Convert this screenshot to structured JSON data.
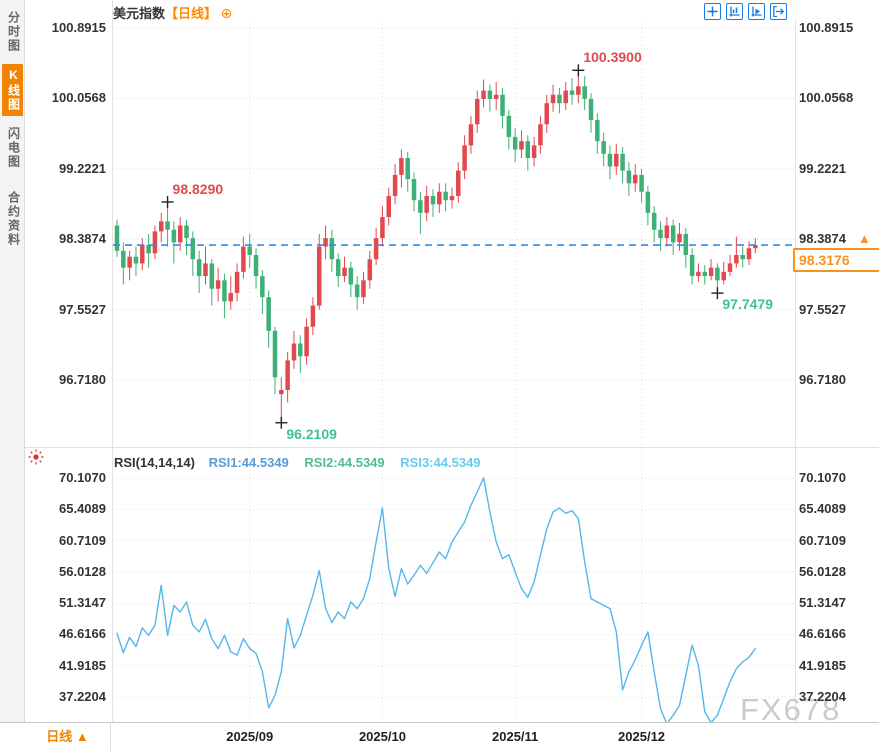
{
  "header": {
    "title": "美元指数",
    "period_tag": "【日线】",
    "add_icon": "⊕"
  },
  "sidebar": {
    "items": [
      {
        "label": "分时图",
        "active": false
      },
      {
        "label": "K线图",
        "active": true
      },
      {
        "label": "闪电图",
        "active": false
      },
      {
        "label": "合约资料",
        "active": false
      }
    ]
  },
  "price_axis": {
    "ticks": [
      "100.8915",
      "100.0568",
      "99.2221",
      "98.3874",
      "97.5527",
      "96.7180"
    ]
  },
  "rsi_axis": {
    "ticks": [
      "70.1070",
      "65.4089",
      "60.7109",
      "56.0128",
      "51.3147",
      "46.6166",
      "41.9185",
      "37.2204"
    ]
  },
  "current_price": {
    "value": "98.3176",
    "axis_row_label": "98.3874",
    "arrow": "▲"
  },
  "annotations": [
    {
      "text": "98.8290",
      "day": 8,
      "price": 98.829,
      "color": "#e3484f",
      "anchor": "above"
    },
    {
      "text": "100.3900",
      "day": 73,
      "price": 100.39,
      "color": "#e3484f",
      "anchor": "above"
    },
    {
      "text": "96.2109",
      "day": 26,
      "price": 96.2109,
      "color": "#3fbf9a",
      "anchor": "below"
    },
    {
      "text": "97.7479",
      "day": 95,
      "price": 97.7479,
      "color": "#3fbf9a",
      "anchor": "below"
    }
  ],
  "rsi_legend": {
    "name": "RSI(14,14,14)",
    "rsi1": "RSI1:44.5349",
    "rsi2": "RSI2:44.5349",
    "rsi3": "RSI3:44.5349"
  },
  "bottom": {
    "period": "日线 ▲",
    "dates": [
      "2025/09",
      "2025/10",
      "2025/11",
      "2025/12"
    ]
  },
  "watermark": "FX678",
  "colors": {
    "up": "#e3484f",
    "down": "#3cb076",
    "rsi_line": "#55b7ea",
    "accent_orange": "#f08300",
    "toolbar_blue": "#1a7ce0",
    "current_price_line": "#2a8df0",
    "grid": "#d9d9d9",
    "watermark": "#cbcbcb"
  },
  "chart_data": [
    {
      "type": "candlestick",
      "title": "美元指数【日线】",
      "ylabel": "price",
      "y_ticks": [
        100.8915,
        100.0568,
        99.2221,
        98.3874,
        97.5527,
        96.718
      ],
      "ylim": [
        96.31,
        100.99
      ],
      "x_labels": [
        "2025/09",
        "2025/10",
        "2025/11",
        "2025/12"
      ],
      "x_label_day_index": [
        21,
        42,
        63,
        83
      ],
      "last_price": 98.3176,
      "high_marker": {
        "price": 100.39,
        "day": 73
      },
      "low_marker": {
        "price": 96.2109,
        "day": 26
      },
      "up_color": "#e3484f",
      "down_color": "#3cb076",
      "ohlc": [
        [
          98.55,
          98.62,
          98.18,
          98.25
        ],
        [
          98.25,
          98.35,
          97.85,
          98.05
        ],
        [
          98.05,
          98.25,
          97.9,
          98.18
        ],
        [
          98.18,
          98.3,
          97.95,
          98.1
        ],
        [
          98.1,
          98.4,
          98.02,
          98.32
        ],
        [
          98.32,
          98.45,
          98.05,
          98.22
        ],
        [
          98.22,
          98.55,
          98.15,
          98.48
        ],
        [
          98.48,
          98.7,
          98.35,
          98.6
        ],
        [
          98.6,
          98.829,
          98.3,
          98.5
        ],
        [
          98.5,
          98.6,
          98.1,
          98.35
        ],
        [
          98.35,
          98.65,
          98.25,
          98.55
        ],
        [
          98.55,
          98.62,
          98.2,
          98.4
        ],
        [
          98.4,
          98.48,
          97.95,
          98.15
        ],
        [
          98.15,
          98.25,
          97.75,
          97.95
        ],
        [
          97.95,
          98.3,
          97.85,
          98.1
        ],
        [
          98.1,
          98.15,
          97.6,
          97.8
        ],
        [
          97.8,
          98.05,
          97.65,
          97.9
        ],
        [
          97.9,
          97.98,
          97.45,
          97.65
        ],
        [
          97.65,
          97.95,
          97.55,
          97.75
        ],
        [
          97.75,
          98.1,
          97.65,
          98.0
        ],
        [
          98.0,
          98.42,
          97.92,
          98.3
        ],
        [
          98.3,
          98.45,
          98.05,
          98.2
        ],
        [
          98.2,
          98.28,
          97.8,
          97.95
        ],
        [
          97.95,
          98.02,
          97.5,
          97.7
        ],
        [
          97.7,
          97.78,
          97.1,
          97.3
        ],
        [
          97.3,
          97.35,
          96.55,
          96.75
        ],
        [
          96.55,
          96.75,
          96.2109,
          96.6
        ],
        [
          96.6,
          97.05,
          96.45,
          96.95
        ],
        [
          96.95,
          97.3,
          96.85,
          97.15
        ],
        [
          97.15,
          97.25,
          96.8,
          97.0
        ],
        [
          97.0,
          97.45,
          96.9,
          97.35
        ],
        [
          97.35,
          97.7,
          97.25,
          97.6
        ],
        [
          97.6,
          98.45,
          97.55,
          98.3
        ],
        [
          98.3,
          98.55,
          98.15,
          98.4
        ],
        [
          98.4,
          98.5,
          98.0,
          98.15
        ],
        [
          98.15,
          98.22,
          97.82,
          97.95
        ],
        [
          97.95,
          98.18,
          97.88,
          98.05
        ],
        [
          98.05,
          98.12,
          97.7,
          97.85
        ],
        [
          97.85,
          97.95,
          97.55,
          97.7
        ],
        [
          97.7,
          98.0,
          97.62,
          97.9
        ],
        [
          97.9,
          98.25,
          97.8,
          98.15
        ],
        [
          98.15,
          98.52,
          98.08,
          98.4
        ],
        [
          98.4,
          98.78,
          98.3,
          98.65
        ],
        [
          98.65,
          99.0,
          98.55,
          98.9
        ],
        [
          98.9,
          99.28,
          98.8,
          99.15
        ],
        [
          99.15,
          99.45,
          99.0,
          99.35
        ],
        [
          99.35,
          99.42,
          98.95,
          99.1
        ],
        [
          99.1,
          99.18,
          98.72,
          98.85
        ],
        [
          98.85,
          98.95,
          98.45,
          98.7
        ],
        [
          98.7,
          99.02,
          98.6,
          98.9
        ],
        [
          98.9,
          98.98,
          98.65,
          98.8
        ],
        [
          98.8,
          99.05,
          98.7,
          98.95
        ],
        [
          98.95,
          99.05,
          98.72,
          98.85
        ],
        [
          98.85,
          99.0,
          98.75,
          98.9
        ],
        [
          98.9,
          99.3,
          98.82,
          99.2
        ],
        [
          99.2,
          99.62,
          99.1,
          99.5
        ],
        [
          99.5,
          99.85,
          99.4,
          99.75
        ],
        [
          99.75,
          100.15,
          99.65,
          100.05
        ],
        [
          100.05,
          100.28,
          99.95,
          100.15
        ],
        [
          100.15,
          100.22,
          99.9,
          100.05
        ],
        [
          100.05,
          100.25,
          99.92,
          100.1
        ],
        [
          100.1,
          100.18,
          99.7,
          99.85
        ],
        [
          99.85,
          99.92,
          99.45,
          99.6
        ],
        [
          99.6,
          99.7,
          99.3,
          99.45
        ],
        [
          99.45,
          99.68,
          99.35,
          99.55
        ],
        [
          99.55,
          99.62,
          99.2,
          99.35
        ],
        [
          99.35,
          99.6,
          99.25,
          99.5
        ],
        [
          99.5,
          99.85,
          99.4,
          99.75
        ],
        [
          99.75,
          100.1,
          99.65,
          100.0
        ],
        [
          100.0,
          100.22,
          99.9,
          100.1
        ],
        [
          100.1,
          100.18,
          99.88,
          100.0
        ],
        [
          100.0,
          100.25,
          99.92,
          100.15
        ],
        [
          100.15,
          100.3,
          99.98,
          100.1
        ],
        [
          100.1,
          100.39,
          100.0,
          100.2
        ],
        [
          100.2,
          100.32,
          99.92,
          100.05
        ],
        [
          100.05,
          100.12,
          99.65,
          99.8
        ],
        [
          99.8,
          99.88,
          99.4,
          99.55
        ],
        [
          99.55,
          99.65,
          99.25,
          99.4
        ],
        [
          99.4,
          99.5,
          99.1,
          99.25
        ],
        [
          99.25,
          99.52,
          99.15,
          99.4
        ],
        [
          99.4,
          99.48,
          99.05,
          99.2
        ],
        [
          99.2,
          99.3,
          98.9,
          99.05
        ],
        [
          99.05,
          99.28,
          98.95,
          99.15
        ],
        [
          99.15,
          99.22,
          98.82,
          98.95
        ],
        [
          98.95,
          99.02,
          98.55,
          98.7
        ],
        [
          98.7,
          98.78,
          98.35,
          98.5
        ],
        [
          98.5,
          98.6,
          98.25,
          98.4
        ],
        [
          98.4,
          98.65,
          98.3,
          98.55
        ],
        [
          98.55,
          98.62,
          98.2,
          98.35
        ],
        [
          98.35,
          98.58,
          98.25,
          98.45
        ],
        [
          98.45,
          98.52,
          98.05,
          98.2
        ],
        [
          98.2,
          98.28,
          97.85,
          97.95
        ],
        [
          97.95,
          98.1,
          97.88,
          98.0
        ],
        [
          98.0,
          98.08,
          97.85,
          97.95
        ],
        [
          97.95,
          98.15,
          97.9,
          98.05
        ],
        [
          98.05,
          98.1,
          97.7479,
          97.9
        ],
        [
          97.9,
          98.12,
          97.85,
          98.0
        ],
        [
          98.0,
          98.2,
          97.95,
          98.1
        ],
        [
          98.1,
          98.42,
          98.05,
          98.2
        ],
        [
          98.2,
          98.3,
          98.05,
          98.15
        ],
        [
          98.15,
          98.36,
          98.08,
          98.28
        ],
        [
          98.28,
          98.4,
          98.22,
          98.3176
        ]
      ]
    },
    {
      "type": "line",
      "title": "RSI(14,14,14)",
      "y_ticks": [
        70.107,
        65.4089,
        60.7109,
        56.0128,
        51.3147,
        46.6166,
        41.9185,
        37.2204
      ],
      "ylim": [
        34.4,
        72.3
      ],
      "current_value": 44.5349,
      "series": [
        {
          "name": "RSI1",
          "color": "#55b7ea",
          "values": [
            46.8,
            43.9,
            46.2,
            44.8,
            47.6,
            46.5,
            48.0,
            54.0,
            46.5,
            51.0,
            50.0,
            51.5,
            48.0,
            47.0,
            48.9,
            46.0,
            44.5,
            46.5,
            44.0,
            43.5,
            46.0,
            44.5,
            43.8,
            41.0,
            35.6,
            37.5,
            41.0,
            49.0,
            44.6,
            46.5,
            49.5,
            52.5,
            56.2,
            50.5,
            48.4,
            50.0,
            49.0,
            51.5,
            50.5,
            52.0,
            55.0,
            60.5,
            65.6,
            56.5,
            52.3,
            56.5,
            54.2,
            55.5,
            57.0,
            55.8,
            57.4,
            59.0,
            58.0,
            60.5,
            62.0,
            63.5,
            66.0,
            68.0,
            70.1,
            65.0,
            60.5,
            58.0,
            58.6,
            56.0,
            53.5,
            52.2,
            54.5,
            58.5,
            62.5,
            65.0,
            65.6,
            64.8,
            65.2,
            64.0,
            57.5,
            52.0,
            51.5,
            51.0,
            50.5,
            47.0,
            38.3,
            41.0,
            42.8,
            45.0,
            47.0,
            41.0,
            35.5,
            33.2,
            34.5,
            36.0,
            40.5,
            45.0,
            42.0,
            35.0,
            33.4,
            34.5,
            37.0,
            39.5,
            41.5,
            42.5,
            43.2,
            44.5
          ]
        }
      ]
    }
  ]
}
